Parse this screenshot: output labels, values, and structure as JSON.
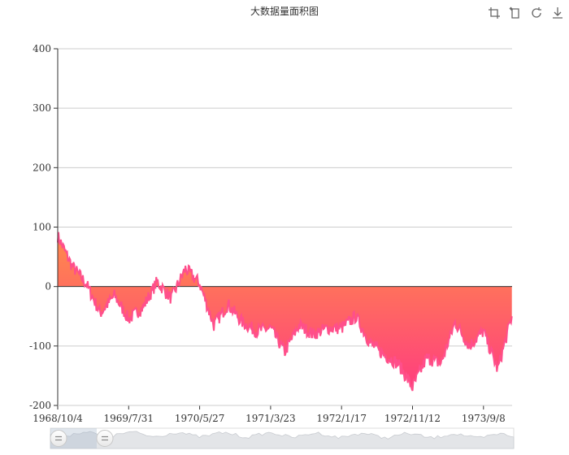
{
  "chart_data": {
    "type": "area",
    "title": "大数据量面积图",
    "xlabel": "",
    "ylabel": "",
    "ylim": [
      -200,
      400
    ],
    "xlim": [
      "1968/10/4",
      "1974/1/7"
    ],
    "y_ticks": [
      "400",
      "300",
      "200",
      "100",
      "0",
      "-100",
      "-200"
    ],
    "x_ticks": [
      "1968/10/4",
      "1969/7/31",
      "1970/5/27",
      "1971/3/23",
      "1972/1/17",
      "1972/11/12",
      "1973/9/8"
    ],
    "grid": true,
    "colors": {
      "line": "#ff4f8b",
      "fill_top": "#ff8c4a",
      "fill_bottom": "#ff3d7f"
    },
    "x": [
      "1968/10/4",
      "1968/12/3",
      "1969/2/1",
      "1969/4/2",
      "1969/6/1",
      "1969/7/31",
      "1969/9/29",
      "1969/11/28",
      "1970/1/27",
      "1970/3/28",
      "1970/5/27",
      "1970/7/26",
      "1970/9/24",
      "1970/11/23",
      "1971/1/22",
      "1971/3/23",
      "1971/5/22",
      "1971/7/21",
      "1971/9/19",
      "1971/11/18",
      "1972/1/17",
      "1972/3/17",
      "1972/5/16",
      "1972/7/15",
      "1972/9/13",
      "1972/11/12",
      "1973/1/11",
      "1973/3/12",
      "1973/5/11",
      "1973/7/10",
      "1973/9/8",
      "1973/11/7",
      "1974/1/6"
    ],
    "series": [
      {
        "values": [
          85,
          35,
          5,
          -45,
          -15,
          -55,
          -35,
          8,
          -20,
          30,
          5,
          -65,
          -30,
          -60,
          -75,
          -70,
          -110,
          -65,
          -80,
          -70,
          -70,
          -50,
          -95,
          -115,
          -130,
          -170,
          -120,
          -130,
          -60,
          -100,
          -75,
          -140,
          -50
        ]
      }
    ],
    "zoom": {
      "start": 0,
      "end": 10
    }
  }
}
